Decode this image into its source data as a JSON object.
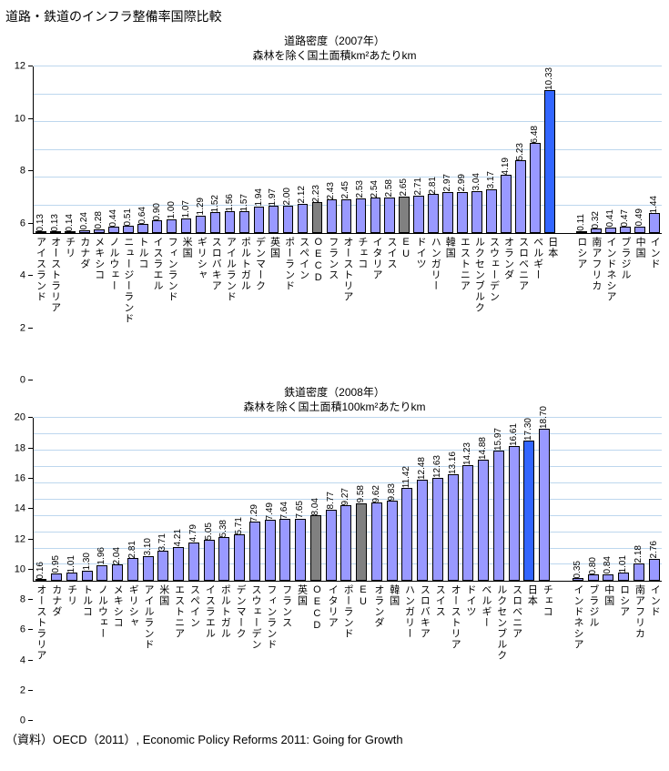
{
  "page": {
    "title": "道路・鉄道のインフラ整備率国際比較",
    "source": "（資料）OECD（2011）, Economic Policy Reforms 2011: Going for Growth"
  },
  "colors": {
    "bar_default": "#9999FF",
    "bar_aggregate": "#808080",
    "bar_highlight": "#3366FF",
    "bar_border": "#000000",
    "gridline": "#BDD7EE",
    "axis": "#000000"
  },
  "chart_data": [
    {
      "type": "bar",
      "title": "道路密度（2007年）",
      "subtitle": "森林を除く国土面積km²あたりkm",
      "ylabel": "",
      "xlabel": "",
      "ylim": [
        0,
        12
      ],
      "ytick_step": 2,
      "grid": true,
      "groups": [
        {
          "bars": [
            {
              "label": "アイスランド",
              "value": "0.13"
            },
            {
              "label": "オーストラリア",
              "value": "0.13"
            },
            {
              "label": "チリ",
              "value": "0.14"
            },
            {
              "label": "カナダ",
              "value": "0.24"
            },
            {
              "label": "メキシコ",
              "value": "0.28"
            },
            {
              "label": "ノルウェー",
              "value": "0.44"
            },
            {
              "label": "ニュージーランド",
              "value": "0.51"
            },
            {
              "label": "トルコ",
              "value": "0.64"
            },
            {
              "label": "イスラエル",
              "value": "0.90"
            },
            {
              "label": "フィンランド",
              "value": "1.00"
            },
            {
              "label": "米国",
              "value": "1.07"
            },
            {
              "label": "ギリシャ",
              "value": "1.29"
            },
            {
              "label": "スロバキア",
              "value": "1.52"
            },
            {
              "label": "アイルランド",
              "value": "1.56"
            },
            {
              "label": "ポルトガル",
              "value": "1.57"
            },
            {
              "label": "デンマーク",
              "value": "1.94"
            },
            {
              "label": "英国",
              "value": "1.97"
            },
            {
              "label": "ポーランド",
              "value": "2.00"
            },
            {
              "label": "スペイン",
              "value": "2.12"
            },
            {
              "label": "OECD",
              "value": "2.23",
              "color": "aggregate"
            },
            {
              "label": "フランス",
              "value": "2.43"
            },
            {
              "label": "オーストリア",
              "value": "2.45"
            },
            {
              "label": "チェコ",
              "value": "2.53"
            },
            {
              "label": "イタリア",
              "value": "2.54"
            },
            {
              "label": "スイス",
              "value": "2.58"
            },
            {
              "label": "EU",
              "value": "2.65",
              "color": "aggregate"
            },
            {
              "label": "ドイツ",
              "value": "2.71"
            },
            {
              "label": "ハンガリー",
              "value": "2.81"
            },
            {
              "label": "韓国",
              "value": "2.97"
            },
            {
              "label": "エストニア",
              "value": "2.99"
            },
            {
              "label": "ルクセンブルク",
              "value": "3.04"
            },
            {
              "label": "スウェーデン",
              "value": "3.17"
            },
            {
              "label": "オランダ",
              "value": "4.19"
            },
            {
              "label": "スロベニア",
              "value": "5.23"
            },
            {
              "label": "ベルギー",
              "value": "6.48"
            },
            {
              "label": "日本",
              "value": "10.33",
              "color": "highlight"
            }
          ]
        },
        {
          "bars": [
            {
              "label": "ロシア",
              "value": "0.11"
            },
            {
              "label": "南アフリカ",
              "value": "0.32"
            },
            {
              "label": "インドネシア",
              "value": "0.41"
            },
            {
              "label": "ブラジル",
              "value": "0.47"
            },
            {
              "label": "中国",
              "value": "0.49"
            },
            {
              "label": "インド",
              "value": "1.44"
            }
          ]
        }
      ]
    },
    {
      "type": "bar",
      "title": "鉄道密度（2008年）",
      "subtitle": "森林を除く国土面積100km²あたりkm",
      "ylabel": "",
      "xlabel": "",
      "ylim": [
        0,
        20
      ],
      "ytick_step": 2,
      "grid": true,
      "groups": [
        {
          "bars": [
            {
              "label": "オーストラリア",
              "value": "0.16"
            },
            {
              "label": "カナダ",
              "value": "0.95"
            },
            {
              "label": "チリ",
              "value": "1.01"
            },
            {
              "label": "トルコ",
              "value": "1.30"
            },
            {
              "label": "ノルウェー",
              "value": "1.96"
            },
            {
              "label": "メキシコ",
              "value": "2.04"
            },
            {
              "label": "ギリシャ",
              "value": "2.81"
            },
            {
              "label": "アイルランド",
              "value": "3.10"
            },
            {
              "label": "米国",
              "value": "3.71"
            },
            {
              "label": "エストニア",
              "value": "4.21"
            },
            {
              "label": "スペイン",
              "value": "4.79"
            },
            {
              "label": "イスラエル",
              "value": "5.05"
            },
            {
              "label": "ポルトガル",
              "value": "5.38"
            },
            {
              "label": "デンマーク",
              "value": "5.71"
            },
            {
              "label": "スウェーデン",
              "value": "7.29"
            },
            {
              "label": "フィンランド",
              "value": "7.49"
            },
            {
              "label": "フランス",
              "value": "7.64"
            },
            {
              "label": "英国",
              "value": "7.65"
            },
            {
              "label": "OECD",
              "value": "8.04",
              "color": "aggregate"
            },
            {
              "label": "イタリア",
              "value": "8.77"
            },
            {
              "label": "ポーランド",
              "value": "9.27"
            },
            {
              "label": "EU",
              "value": "9.58",
              "color": "aggregate"
            },
            {
              "label": "オランダ",
              "value": "9.62"
            },
            {
              "label": "韓国",
              "value": "9.83"
            },
            {
              "label": "ハンガリー",
              "value": "11.42"
            },
            {
              "label": "スロバキア",
              "value": "12.48"
            },
            {
              "label": "スイス",
              "value": "12.63"
            },
            {
              "label": "オーストリア",
              "value": "13.16"
            },
            {
              "label": "ドイツ",
              "value": "14.23"
            },
            {
              "label": "ベルギー",
              "value": "14.88"
            },
            {
              "label": "ルクセンブルク",
              "value": "15.97"
            },
            {
              "label": "スロベニア",
              "value": "16.61"
            },
            {
              "label": "日本",
              "value": "17.30",
              "color": "highlight"
            },
            {
              "label": "チェコ",
              "value": "18.70"
            }
          ]
        },
        {
          "bars": [
            {
              "label": "インドネシア",
              "value": "0.35"
            },
            {
              "label": "ブラジル",
              "value": "0.80"
            },
            {
              "label": "中国",
              "value": "0.84"
            },
            {
              "label": "ロシア",
              "value": "1.01"
            },
            {
              "label": "南アフリカ",
              "value": "2.18"
            },
            {
              "label": "インド",
              "value": "2.76"
            }
          ]
        }
      ]
    }
  ]
}
